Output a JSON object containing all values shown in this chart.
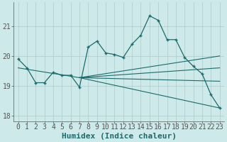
{
  "xlabel": "Humidex (Indice chaleur)",
  "ylabel": "",
  "background_color": "#cee9e9",
  "grid_color": "#b0c8c8",
  "line_color": "#1a6b6b",
  "axis_color": "#555555",
  "xlim": [
    -0.5,
    23.5
  ],
  "ylim": [
    17.8,
    21.8
  ],
  "yticks": [
    18,
    19,
    20,
    21
  ],
  "xticks": [
    0,
    1,
    2,
    3,
    4,
    5,
    6,
    7,
    8,
    9,
    10,
    11,
    12,
    13,
    14,
    15,
    16,
    17,
    18,
    19,
    20,
    21,
    22,
    23
  ],
  "main_data_x": [
    0,
    1,
    2,
    3,
    4,
    5,
    6,
    7,
    8,
    9,
    10,
    11,
    12,
    13,
    14,
    15,
    16,
    17,
    18,
    19,
    20,
    21,
    22,
    23
  ],
  "main_data_y": [
    19.9,
    19.6,
    19.1,
    19.1,
    19.45,
    19.35,
    19.35,
    18.95,
    20.3,
    20.5,
    20.1,
    20.05,
    19.95,
    20.4,
    20.7,
    21.35,
    21.2,
    20.55,
    20.55,
    19.95,
    19.65,
    19.4,
    18.7,
    18.25
  ],
  "trend_lines": [
    [
      7.0,
      19.27,
      23.0,
      20.0
    ],
    [
      7.0,
      19.27,
      23.0,
      19.6
    ],
    [
      7.0,
      19.27,
      23.0,
      19.15
    ],
    [
      7.0,
      19.27,
      23.0,
      18.25
    ],
    [
      7.0,
      19.27,
      0.0,
      19.6
    ]
  ],
  "font_size_xlabel": 8,
  "font_size_ticks": 7,
  "lw_main": 0.9,
  "lw_trend": 0.8,
  "marker_size": 3.5,
  "marker_ew": 1.0
}
